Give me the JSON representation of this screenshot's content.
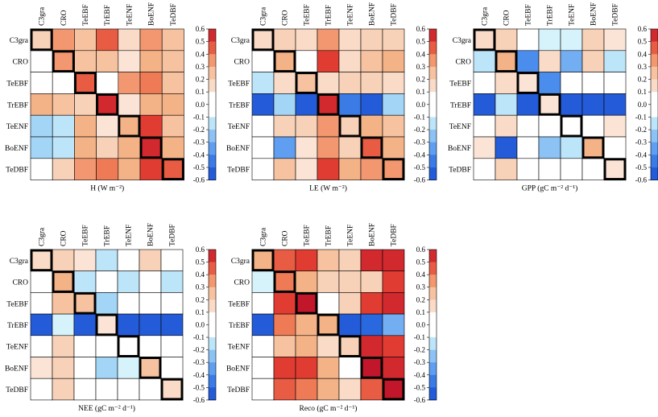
{
  "chart_data": {
    "type": "heatmap",
    "pfts": [
      "C3gra",
      "CRO",
      "TeEBF",
      "TrEBF",
      "TeENF",
      "BoENF",
      "TeDBF"
    ],
    "colorbar": {
      "range": [
        -0.6,
        0.6
      ],
      "ticks": [
        "0.6",
        "0.5",
        "0.4",
        "0.3",
        "0.2",
        "0.1",
        "0.0",
        "-0.1",
        "-0.2",
        "-0.3",
        "-0.4",
        "-0.5",
        "-0.6"
      ],
      "colors": {
        "-0.6": "#1f4fd0",
        "-0.5": "#2a68df",
        "-0.4": "#4a8ded",
        "-0.3": "#74aef2",
        "-0.2": "#a3d6f6",
        "-0.1": "#d6f3fb",
        "0.0": "#ffffff",
        "0.1": "#fbe4d6",
        "0.2": "#f8d2b8",
        "0.3": "#f4b287",
        "0.4": "#ef7b56",
        "0.5": "#e03c32",
        "0.6": "#c2172a"
      }
    },
    "panels": [
      {
        "xlabel": "H (W m⁻²)",
        "values": [
          [
            0.2,
            0.35,
            0.25,
            0.45,
            0.15,
            0.35,
            0.25
          ],
          [
            0.0,
            0.35,
            0.25,
            0.25,
            0.1,
            0.3,
            0.25
          ],
          [
            0.0,
            0.0,
            0.45,
            0.0,
            0.35,
            0.4,
            0.25
          ],
          [
            0.3,
            0.25,
            0.2,
            0.55,
            0.1,
            0.3,
            0.3
          ],
          [
            -0.2,
            -0.15,
            0.3,
            0.1,
            0.3,
            0.5,
            0.25
          ],
          [
            -0.2,
            -0.15,
            0.3,
            0.2,
            0.3,
            0.55,
            0.3
          ],
          [
            0.0,
            0.2,
            0.35,
            0.4,
            0.3,
            0.5,
            0.45
          ]
        ]
      },
      {
        "xlabel": "LE (W m⁻²)",
        "values": [
          [
            0.15,
            0.2,
            0.15,
            0.35,
            0.15,
            0.2,
            0.2
          ],
          [
            0.0,
            0.3,
            0.0,
            0.5,
            0.15,
            0.25,
            0.3
          ],
          [
            -0.15,
            0.15,
            0.25,
            0.15,
            0.2,
            0.2,
            0.15
          ],
          [
            -0.55,
            -0.2,
            -0.55,
            0.55,
            -0.45,
            -0.55,
            -0.2
          ],
          [
            0.0,
            0.2,
            0.2,
            0.35,
            0.2,
            0.3,
            0.25
          ],
          [
            0.0,
            -0.35,
            0.1,
            0.35,
            0.2,
            0.45,
            0.3
          ],
          [
            0.0,
            0.25,
            0.1,
            0.5,
            0.3,
            0.35,
            0.35
          ]
        ]
      },
      {
        "xlabel": "GPP (gC m⁻² d⁻¹)",
        "values": [
          [
            0.15,
            0.2,
            0.0,
            -0.1,
            -0.1,
            0.2,
            0.1
          ],
          [
            -0.15,
            0.3,
            -0.4,
            0.15,
            -0.3,
            0.2,
            -0.15
          ],
          [
            0.0,
            0.15,
            0.1,
            -0.4,
            0.0,
            0.0,
            0.0
          ],
          [
            -0.55,
            -0.15,
            -0.55,
            0.1,
            -0.55,
            -0.55,
            -0.55
          ],
          [
            0.0,
            0.15,
            0.0,
            0.0,
            0.0,
            0.0,
            0.1
          ],
          [
            0.1,
            -0.55,
            0.0,
            -0.25,
            -0.15,
            0.3,
            0.0
          ],
          [
            0.0,
            0.2,
            0.0,
            0.0,
            0.0,
            0.0,
            0.1
          ]
        ]
      },
      {
        "xlabel": "NEE (gC m⁻² d⁻¹)",
        "values": [
          [
            0.15,
            0.2,
            0.1,
            -0.15,
            0.0,
            0.2,
            0.0
          ],
          [
            0.0,
            0.3,
            -0.15,
            0.0,
            -0.15,
            0.0,
            -0.15
          ],
          [
            0.0,
            0.25,
            0.25,
            -0.2,
            0.0,
            0.0,
            0.0
          ],
          [
            -0.55,
            -0.1,
            -0.55,
            0.1,
            -0.55,
            -0.55,
            -0.55
          ],
          [
            0.0,
            0.2,
            0.0,
            0.0,
            0.0,
            0.0,
            0.0
          ],
          [
            0.1,
            0.2,
            0.0,
            -0.2,
            -0.1,
            0.25,
            0.0
          ],
          [
            0.0,
            0.2,
            0.0,
            0.0,
            0.0,
            0.0,
            0.15
          ]
        ]
      },
      {
        "xlabel": "Reco (gC m⁻² d⁻¹)",
        "values": [
          [
            0.3,
            0.45,
            0.5,
            0.25,
            0.2,
            0.55,
            0.55
          ],
          [
            -0.1,
            0.4,
            0.3,
            0.2,
            0.2,
            0.2,
            0.5
          ],
          [
            0.0,
            0.5,
            0.6,
            0.0,
            0.2,
            0.5,
            0.55
          ],
          [
            -0.55,
            0.4,
            0.3,
            0.3,
            -0.55,
            -0.5,
            -0.3
          ],
          [
            0.0,
            0.25,
            0.3,
            0.15,
            0.2,
            0.55,
            0.5
          ],
          [
            0.0,
            0.5,
            0.5,
            0.3,
            0.0,
            0.6,
            0.55
          ],
          [
            0.0,
            0.45,
            0.4,
            0.3,
            0.15,
            0.45,
            0.6
          ]
        ]
      }
    ]
  }
}
